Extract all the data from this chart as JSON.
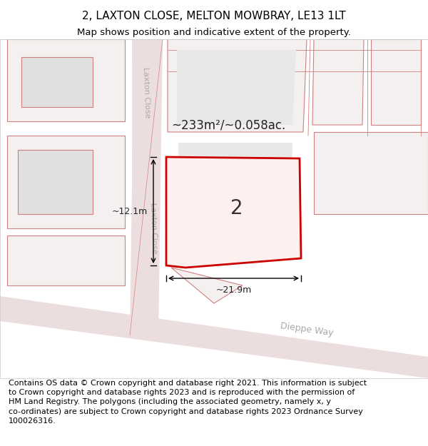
{
  "title": "2, LAXTON CLOSE, MELTON MOWBRAY, LE13 1LT",
  "subtitle": "Map shows position and indicative extent of the property.",
  "footer_line1": "Contains OS data © Crown copyright and database right 2021. This information is subject",
  "footer_line2": "to Crown copyright and database rights 2023 and is reproduced with the permission of",
  "footer_line3": "HM Land Registry. The polygons (including the associated geometry, namely x, y",
  "footer_line4": "co-ordinates) are subject to Crown copyright and database rights 2023 Ordnance Survey",
  "footer_line5": "100026316.",
  "bg_color": "#f5f0f0",
  "map_bg": "#ffffff",
  "road_color": "#e8d8d8",
  "building_bg": "#e8e8e8",
  "highlight_color": "#cc0000",
  "area_label": "~233m²/~0.058ac.",
  "number_label": "2",
  "dim_width": "~21.9m",
  "dim_height": "~12.1m",
  "road_label1": "Laxton Close",
  "road_label2": "Laxton Close",
  "road_label3": "Dieppe Way",
  "title_fontsize": 11,
  "subtitle_fontsize": 9.5,
  "footer_fontsize": 8
}
